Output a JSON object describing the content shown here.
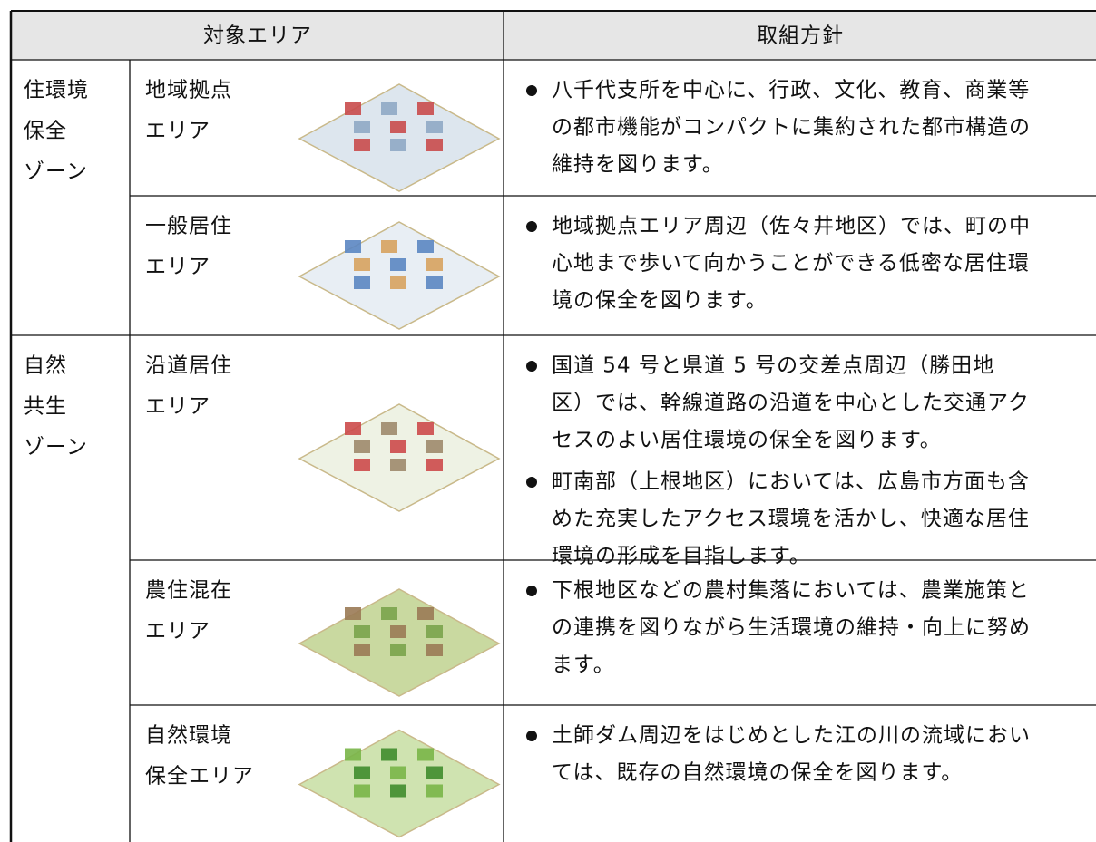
{
  "table": {
    "header": [
      "対象エリア",
      "取組方針"
    ],
    "zones": [
      {
        "label": [
          "住環境",
          "保全",
          "ゾーン"
        ],
        "areas": [
          {
            "name": [
              "地域拠点",
              "エリア"
            ],
            "policies": [
              [
                "八千代支所を中心に、行政、文化、教育、商業等",
                "の都市機能がコンパクトに集約された都市構造の",
                "維持を図ります。"
              ]
            ]
          },
          {
            "name": [
              "一般居住",
              "エリア"
            ],
            "policies": [
              [
                "地域拠点エリア周辺（佐々井地区）では、町の中",
                "心地まで歩いて向かうことができる低密な居住環",
                "境の保全を図ります。"
              ]
            ]
          }
        ]
      },
      {
        "label": [
          "自然",
          "共生",
          "ゾーン"
        ],
        "areas": [
          {
            "name": [
              "沿道居住",
              "エリア"
            ],
            "policies": [
              [
                "国道 54 号と県道 5 号の交差点周辺（勝田地",
                "区）では、幹線道路の沿道を中心とした交通アク",
                "セスのよい居住環境の保全を図ります。"
              ],
              [
                "町南部（上根地区）においては、広島市方面も含",
                "めた充実したアクセス環境を活かし、快適な居住",
                "環境の形成を目指します。"
              ]
            ]
          },
          {
            "name": [
              "農住混在",
              "エリア"
            ],
            "policies": [
              [
                "下根地区などの農村集落においては、農業施策と",
                "の連携を図りながら生活環境の維持・向上に努め",
                "ます。"
              ]
            ]
          },
          {
            "name": [
              "自然環境",
              "保全エリア"
            ],
            "policies": [
              [
                "土師ダム周辺をはじめとした江の川の流域におい",
                "ては、既存の自然環境の保全を図ります。"
              ]
            ]
          }
        ]
      }
    ]
  }
}
